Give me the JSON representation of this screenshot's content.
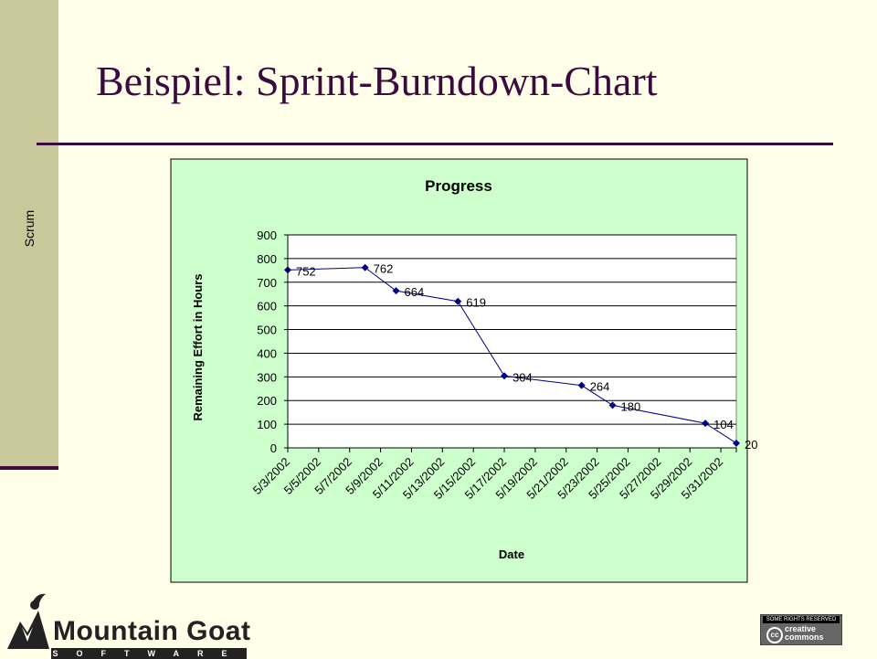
{
  "slide": {
    "title": "Beispiel: Sprint-Burndown-Chart",
    "side_label": "Scrum"
  },
  "colors": {
    "title": "#3b0a3e",
    "sidebar": "#c8c89a",
    "chart_area": "#ccffcc",
    "series": "#000080"
  },
  "chart_data": {
    "type": "line",
    "title": "Progress",
    "xlabel": "Date",
    "ylabel": "Remaining Effort in Hours",
    "ylim": [
      0,
      900
    ],
    "yticks": [
      0,
      100,
      200,
      300,
      400,
      500,
      600,
      700,
      800,
      900
    ],
    "xlim": [
      "5/3/2002",
      "6/1/2002"
    ],
    "xticks": [
      "5/3/2002",
      "5/5/2002",
      "5/7/2002",
      "5/9/2002",
      "5/11/2002",
      "5/13/2002",
      "5/15/2002",
      "5/17/2002",
      "5/19/2002",
      "5/21/2002",
      "5/23/2002",
      "5/25/2002",
      "5/27/2002",
      "5/29/2002",
      "5/31/2002"
    ],
    "grid": "horizontal",
    "series": [
      {
        "points": [
          {
            "x": "5/3/2002",
            "y": 752,
            "label": "752"
          },
          {
            "x": "5/8/2002",
            "y": 762,
            "label": "762"
          },
          {
            "x": "5/10/2002",
            "y": 664,
            "label": "664"
          },
          {
            "x": "5/14/2002",
            "y": 619,
            "label": "619"
          },
          {
            "x": "5/17/2002",
            "y": 304,
            "label": "304"
          },
          {
            "x": "5/22/2002",
            "y": 264,
            "label": "264"
          },
          {
            "x": "5/24/2002",
            "y": 180,
            "label": "180"
          },
          {
            "x": "5/30/2002",
            "y": 104,
            "label": "104"
          },
          {
            "x": "6/1/2002",
            "y": 20,
            "label": "20"
          }
        ]
      }
    ]
  },
  "logo": {
    "name": "Mountain Goat",
    "tagline": "SOFTWARE"
  },
  "license_badge": {
    "top_text": "SOME RIGHTS RESERVED",
    "mark": "cc",
    "line1": "creative",
    "line2": "commons"
  }
}
